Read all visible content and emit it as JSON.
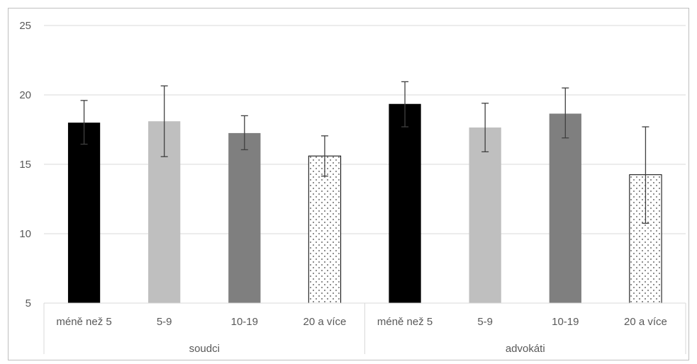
{
  "chart_data": {
    "type": "bar",
    "title": "",
    "xlabel": "",
    "ylabel": "",
    "ylim": [
      5,
      25
    ],
    "y_ticks": [
      "5",
      "10",
      "15",
      "20",
      "25"
    ],
    "grid": true,
    "legend": "none",
    "groups": [
      {
        "label": "soudci",
        "bars": [
          {
            "category": "méně než 5",
            "value": 18.0,
            "error_low": 16.45,
            "error_high": 19.6,
            "fill": "#000000",
            "pattern": "solid"
          },
          {
            "category": "5-9",
            "value": 18.1,
            "error_low": 15.55,
            "error_high": 20.65,
            "fill": "#bfbfbf",
            "pattern": "solid"
          },
          {
            "category": "10-19",
            "value": 17.25,
            "error_low": 16.05,
            "error_high": 18.5,
            "fill": "#7f7f7f",
            "pattern": "solid"
          },
          {
            "category": "20 a více",
            "value": 15.6,
            "error_low": 14.15,
            "error_high": 17.05,
            "fill": "#ffffff",
            "pattern": "dots"
          }
        ]
      },
      {
        "label": "advokáti",
        "bars": [
          {
            "category": "méně než 5",
            "value": 19.35,
            "error_low": 17.7,
            "error_high": 20.95,
            "fill": "#000000",
            "pattern": "solid"
          },
          {
            "category": "5-9",
            "value": 17.65,
            "error_low": 15.9,
            "error_high": 19.4,
            "fill": "#bfbfbf",
            "pattern": "solid"
          },
          {
            "category": "10-19",
            "value": 18.65,
            "error_low": 16.9,
            "error_high": 20.5,
            "fill": "#7f7f7f",
            "pattern": "solid"
          },
          {
            "category": "20 a více",
            "value": 14.25,
            "error_low": 10.75,
            "error_high": 17.7,
            "fill": "#ffffff",
            "pattern": "dots"
          }
        ]
      }
    ],
    "colors": {
      "grid": "#d9d9d9",
      "axis_text": "#595959",
      "error_bar": "#404040",
      "border": "#bfbfbf"
    }
  }
}
